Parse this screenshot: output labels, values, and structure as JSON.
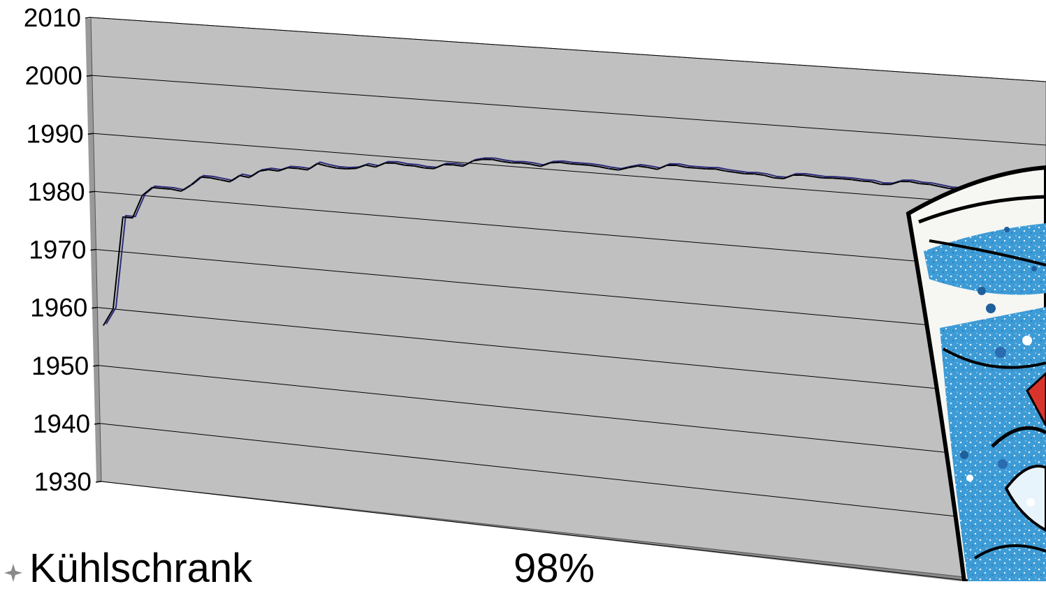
{
  "chart_data": {
    "type": "line",
    "title": "",
    "xlabel": "",
    "ylabel": "",
    "ylim": [
      1930,
      2010
    ],
    "yticks": [
      1930,
      1940,
      1950,
      1960,
      1970,
      1980,
      1990,
      2000,
      2010
    ],
    "ytick_labels": [
      "1930",
      "1940",
      "1950",
      "1960",
      "1970",
      "1980",
      "1990",
      "2000",
      "2010"
    ],
    "grid": true,
    "chart_style": "3d-perspective",
    "colors": {
      "wall": "#c0c0c0",
      "line": "#000000",
      "ribbon": "#2b2b7a",
      "gridline": "#000000"
    },
    "series": [
      {
        "values": [
          1957,
          1960,
          1976,
          1976,
          1980,
          1981.5,
          1981.5,
          1981.5,
          1981.3,
          1982.5,
          1984,
          1984,
          1983.8,
          1983.6,
          1984.8,
          1984.6,
          1985.8,
          1986.2,
          1986.1,
          1986.8,
          1986.8,
          1986.7,
          1987.9,
          1987.6,
          1987.4,
          1987.4,
          1987.6,
          1988.3,
          1988.1,
          1988.9,
          1989.0,
          1988.8,
          1988.8,
          1988.6,
          1988.6,
          1989.4,
          1989.5,
          1989.4,
          1990.4,
          1990.8,
          1990.9,
          1990.7,
          1990.6,
          1990.7,
          1990.6,
          1990.4,
          1991.1,
          1991.3,
          1991.2,
          1991.2,
          1991.2,
          1991.1,
          1990.9,
          1990.8,
          1991.3,
          1991.7,
          1991.6,
          1991.4,
          1992.2,
          1992.3,
          1992.1,
          1992.1,
          1992.1,
          1992.2,
          1992.0,
          1991.9,
          1991.8,
          1991.9,
          1991.8,
          1991.5,
          1991.5,
          1992.2,
          1992.3,
          1992.2,
          1992.1,
          1992.2,
          1992.2,
          1992.2,
          1992.1,
          1992.1,
          1991.8,
          1991.9,
          1992.5,
          1992.6,
          1992.4,
          1992.4,
          1992.2,
          1992.0,
          1992.0,
          1991.9,
          1991.9,
          1991.7,
          1991.6,
          1991.5,
          1992.1,
          1992.1,
          1992.2,
          1992.0
        ]
      }
    ]
  },
  "annotation": {
    "label": "Kühlschrank",
    "value": "98%"
  }
}
